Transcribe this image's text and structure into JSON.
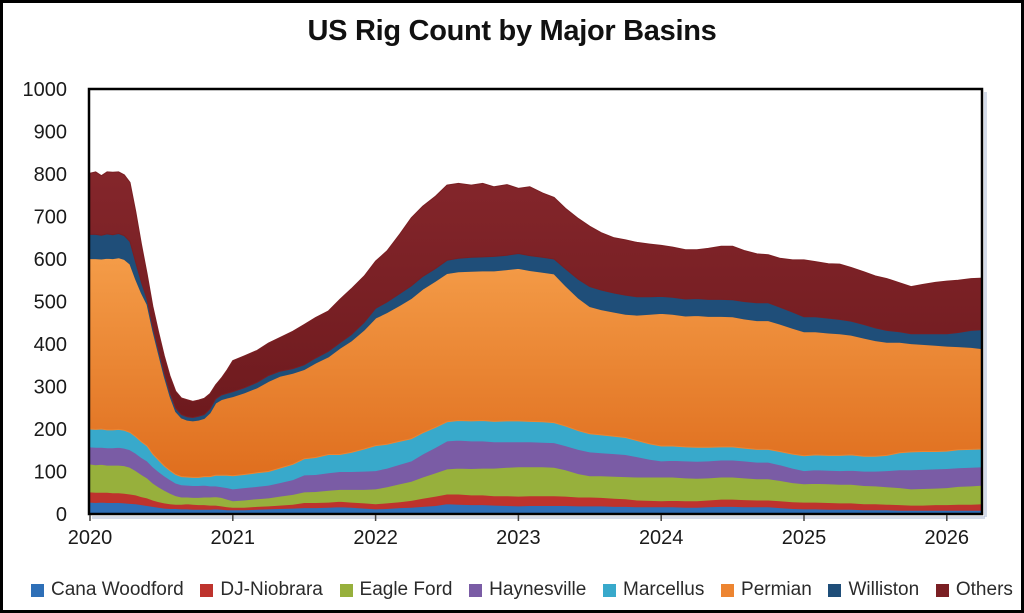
{
  "chart_data": {
    "type": "area",
    "stacked": true,
    "title": "US Rig Count by Major Basins",
    "xlabel": "",
    "ylabel": "",
    "grid": false,
    "legend_position": "bottom",
    "ylim": [
      0,
      1000
    ],
    "xlim": [
      2019.99,
      2026.26
    ],
    "y_ticks": [
      0,
      100,
      200,
      300,
      400,
      500,
      600,
      700,
      800,
      900,
      1000
    ],
    "x_ticks": [
      2020,
      2021,
      2022,
      2023,
      2024,
      2025,
      2026
    ],
    "x": [
      2020.0,
      2020.04,
      2020.08,
      2020.12,
      2020.16,
      2020.2,
      2020.24,
      2020.28,
      2020.32,
      2020.36,
      2020.4,
      2020.44,
      2020.48,
      2020.52,
      2020.56,
      2020.6,
      2020.64,
      2020.68,
      2020.72,
      2020.76,
      2020.8,
      2020.84,
      2020.88,
      2020.92,
      2020.96,
      2021.0,
      2021.08,
      2021.17,
      2021.25,
      2021.33,
      2021.42,
      2021.5,
      2021.58,
      2021.67,
      2021.75,
      2021.83,
      2021.92,
      2022.0,
      2022.08,
      2022.17,
      2022.25,
      2022.33,
      2022.42,
      2022.5,
      2022.58,
      2022.67,
      2022.75,
      2022.83,
      2022.92,
      2023.0,
      2023.08,
      2023.17,
      2023.25,
      2023.33,
      2023.42,
      2023.5,
      2023.58,
      2023.67,
      2023.75,
      2023.83,
      2023.92,
      2024.0,
      2024.08,
      2024.17,
      2024.25,
      2024.33,
      2024.42,
      2024.5,
      2024.58,
      2024.67,
      2024.75,
      2024.83,
      2024.92,
      2025.0,
      2025.08,
      2025.17,
      2025.25,
      2025.33,
      2025.42,
      2025.5,
      2025.58,
      2025.67,
      2025.75,
      2025.83,
      2025.92,
      2026.0,
      2026.08,
      2026.17,
      2026.25
    ],
    "series": [
      {
        "name": "Cana Woodford",
        "color": "#2E6FB7",
        "values": [
          28,
          27,
          28,
          27,
          27,
          27,
          26,
          25,
          24,
          22,
          20,
          18,
          16,
          14,
          13,
          13,
          12,
          12,
          11,
          11,
          11,
          11,
          12,
          11,
          10,
          10,
          10,
          11,
          12,
          13,
          14,
          15,
          15,
          16,
          17,
          16,
          14,
          12,
          13,
          15,
          16,
          18,
          20,
          24,
          23,
          22,
          22,
          21,
          20,
          19,
          20,
          20,
          20,
          20,
          19,
          19,
          19,
          18,
          18,
          17,
          17,
          17,
          17,
          16,
          16,
          17,
          18,
          18,
          17,
          17,
          17,
          15,
          13,
          12,
          12,
          11,
          11,
          11,
          10,
          10,
          10,
          9,
          9,
          9,
          9,
          9,
          9,
          9,
          9
        ]
      },
      {
        "name": "DJ-Niobrara",
        "color": "#BE332D",
        "values": [
          24,
          24,
          23,
          24,
          23,
          23,
          23,
          22,
          21,
          19,
          18,
          15,
          13,
          12,
          11,
          10,
          11,
          12,
          12,
          11,
          11,
          10,
          9,
          8,
          7,
          6,
          6,
          7,
          7,
          8,
          9,
          12,
          12,
          12,
          13,
          12,
          12,
          12,
          13,
          14,
          16,
          19,
          22,
          23,
          24,
          23,
          23,
          22,
          23,
          23,
          23,
          23,
          23,
          22,
          21,
          21,
          20,
          19,
          18,
          16,
          15,
          14,
          15,
          15,
          15,
          16,
          17,
          17,
          17,
          16,
          16,
          16,
          16,
          16,
          16,
          16,
          15,
          15,
          14,
          14,
          13,
          13,
          12,
          12,
          13,
          13,
          14,
          14,
          15
        ]
      },
      {
        "name": "Eagle Ford",
        "color": "#97B03C",
        "values": [
          66,
          65,
          66,
          64,
          65,
          65,
          65,
          63,
          57,
          52,
          47,
          40,
          35,
          30,
          25,
          20,
          17,
          16,
          16,
          17,
          18,
          19,
          20,
          20,
          18,
          15,
          17,
          18,
          19,
          21,
          23,
          25,
          26,
          28,
          28,
          30,
          32,
          35,
          38,
          42,
          45,
          50,
          55,
          59,
          61,
          62,
          63,
          65,
          67,
          69,
          68,
          68,
          67,
          62,
          55,
          50,
          51,
          52,
          52,
          54,
          55,
          56,
          55,
          54,
          53,
          52,
          52,
          52,
          51,
          50,
          50,
          48,
          45,
          43,
          44,
          44,
          44,
          44,
          43,
          42,
          41,
          40,
          38,
          39,
          39,
          40,
          42,
          43,
          44
        ]
      },
      {
        "name": "Haynesville",
        "color": "#7A5CA5",
        "values": [
          40,
          41,
          40,
          41,
          41,
          42,
          41,
          41,
          41,
          40,
          40,
          38,
          36,
          34,
          32,
          30,
          29,
          28,
          28,
          28,
          28,
          26,
          25,
          25,
          27,
          28,
          29,
          29,
          30,
          32,
          35,
          40,
          40,
          41,
          42,
          42,
          43,
          43,
          44,
          46,
          48,
          54,
          60,
          66,
          66,
          65,
          64,
          62,
          60,
          59,
          59,
          58,
          58,
          57,
          57,
          56,
          54,
          53,
          52,
          48,
          42,
          38,
          39,
          40,
          40,
          40,
          40,
          40,
          40,
          39,
          39,
          37,
          34,
          31,
          32,
          32,
          32,
          33,
          34,
          35,
          38,
          42,
          45,
          45,
          45,
          45,
          44,
          44,
          43
        ]
      },
      {
        "name": "Marcellus",
        "color": "#38A9CB",
        "values": [
          42,
          42,
          43,
          42,
          42,
          42,
          42,
          41,
          39,
          37,
          35,
          30,
          27,
          23,
          21,
          20,
          19,
          19,
          19,
          19,
          20,
          22,
          25,
          27,
          29,
          31,
          31,
          32,
          32,
          34,
          36,
          38,
          40,
          43,
          40,
          45,
          52,
          59,
          56,
          54,
          52,
          50,
          47,
          45,
          46,
          47,
          48,
          48,
          49,
          49,
          48,
          48,
          47,
          46,
          44,
          43,
          42,
          41,
          40,
          38,
          36,
          35,
          34,
          33,
          33,
          32,
          31,
          31,
          30,
          30,
          30,
          31,
          33,
          35,
          35,
          35,
          36,
          36,
          35,
          35,
          36,
          40,
          42,
          42,
          41,
          41,
          42,
          42,
          42
        ]
      },
      {
        "name": "Permian",
        "color": "#ED8531",
        "gradient": [
          "#F49C48",
          "#DF6E1E"
        ],
        "values": [
          401,
          402,
          400,
          404,
          403,
          404,
          402,
          396,
          370,
          350,
          333,
          290,
          250,
          210,
          175,
          148,
          138,
          134,
          133,
          135,
          137,
          150,
          170,
          178,
          182,
          186,
          192,
          200,
          212,
          216,
          214,
          210,
          222,
          230,
          250,
          262,
          280,
          300,
          310,
          320,
          330,
          338,
          344,
          349,
          350,
          352,
          352,
          354,
          356,
          359,
          355,
          352,
          350,
          330,
          312,
          299,
          295,
          292,
          290,
          295,
          305,
          312,
          310,
          308,
          310,
          308,
          307,
          306,
          304,
          303,
          303,
          300,
          296,
          292,
          290,
          288,
          286,
          282,
          278,
          272,
          266,
          260,
          255,
          252,
          250,
          247,
          243,
          240,
          236
        ]
      },
      {
        "name": "Williston",
        "color": "#1F4E79",
        "values": [
          57,
          57,
          56,
          57,
          56,
          57,
          56,
          53,
          40,
          25,
          12,
          10,
          10,
          9,
          8,
          8,
          8,
          8,
          8,
          9,
          9,
          9,
          10,
          11,
          11,
          12,
          12,
          13,
          14,
          12,
          11,
          11,
          12,
          13,
          13,
          15,
          18,
          23,
          25,
          28,
          30,
          30,
          30,
          31,
          32,
          33,
          33,
          34,
          34,
          35,
          35,
          35,
          35,
          40,
          44,
          47,
          46,
          45,
          45,
          43,
          41,
          40,
          40,
          40,
          40,
          40,
          40,
          40,
          41,
          42,
          42,
          40,
          38,
          35,
          35,
          35,
          34,
          33,
          32,
          30,
          28,
          25,
          23,
          25,
          27,
          29,
          33,
          40,
          45
        ]
      },
      {
        "name": "Others",
        "color": "#7A1F23",
        "gradient": [
          "#84262B",
          "#6E1A1E"
        ],
        "values": [
          144,
          147,
          140,
          146,
          147,
          145,
          143,
          139,
          120,
          90,
          60,
          48,
          42,
          40,
          40,
          40,
          39,
          40,
          38,
          38,
          38,
          36,
          33,
          40,
          55,
          73,
          75,
          75,
          76,
          79,
          88,
          95,
          95,
          95,
          102,
          108,
          109,
          111,
          120,
          140,
          160,
          165,
          170,
          177,
          176,
          170,
          173,
          164,
          166,
          153,
          162,
          151,
          145,
          142,
          143,
          142,
          135,
          130,
          130,
          128,
          124,
          120,
          118,
          116,
          115,
          120,
          125,
          126,
          120,
          115,
          113,
          115,
          123,
          134,
          130,
          128,
          130,
          126,
          124,
          122,
          122,
          115,
          111,
          116,
          121,
          124,
          123,
          122,
          121
        ]
      }
    ]
  }
}
